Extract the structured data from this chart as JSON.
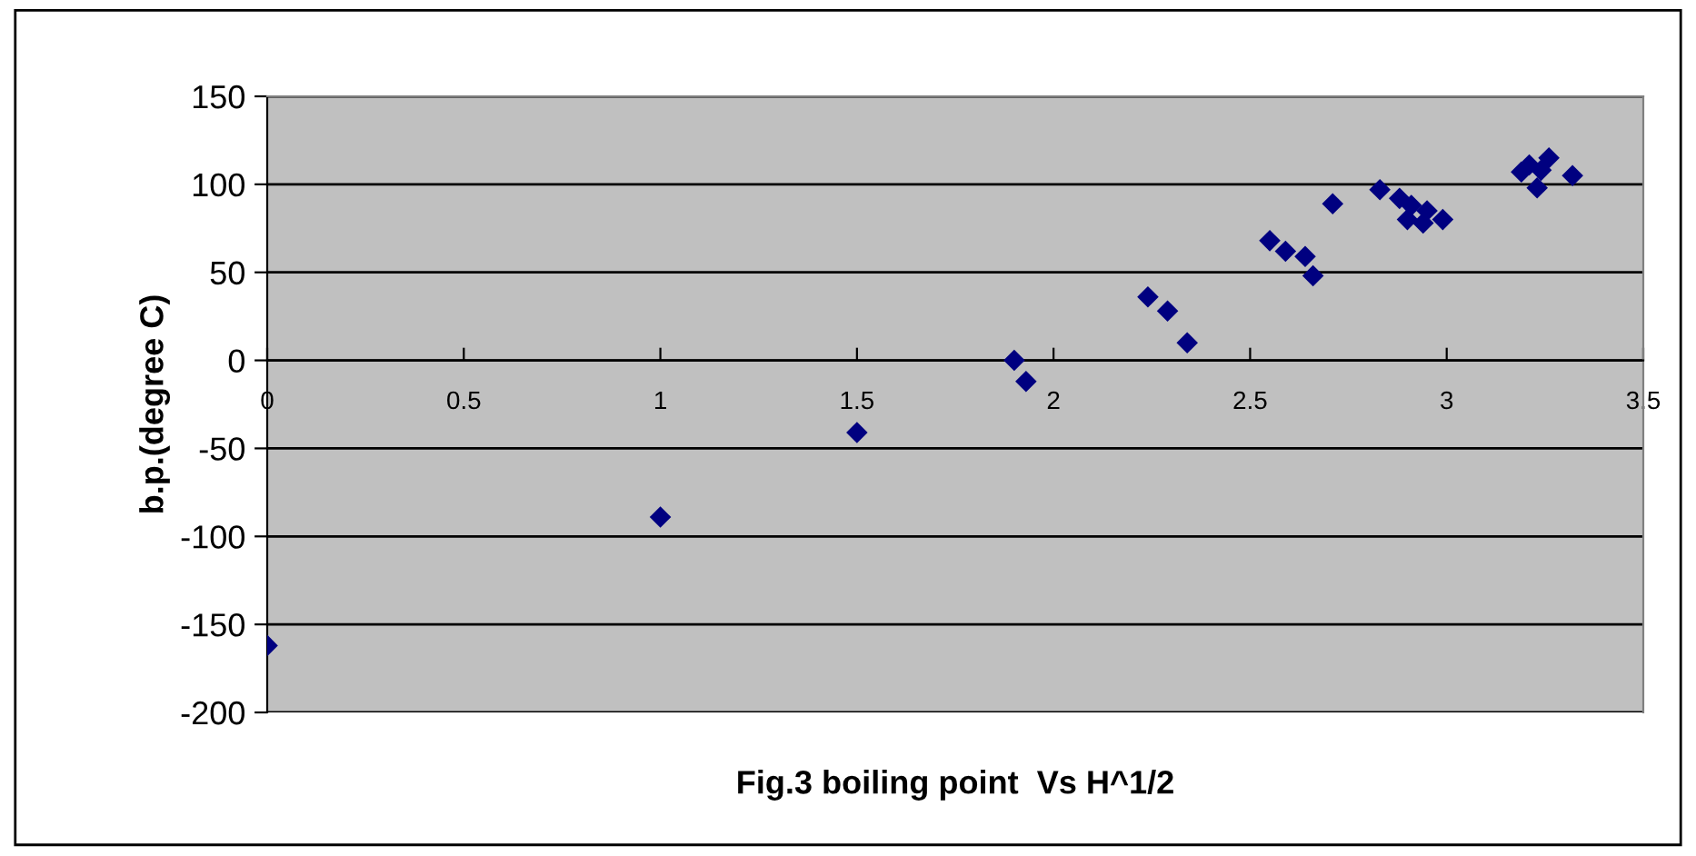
{
  "chart_data": {
    "type": "scatter",
    "xlabel": "Fig.3 boiling point  Vs H^1/2",
    "ylabel": "b.p.(degree C)",
    "x": [
      0,
      1.0,
      1.5,
      1.9,
      1.93,
      2.24,
      2.29,
      2.34,
      2.55,
      2.59,
      2.64,
      2.66,
      2.71,
      2.83,
      2.88,
      2.91,
      2.9,
      2.94,
      2.95,
      2.99,
      3.19,
      3.21,
      3.26,
      3.24,
      3.23,
      3.32
    ],
    "values": [
      -162,
      -89,
      -41,
      0,
      -12,
      36,
      28,
      10,
      68,
      62,
      59,
      48,
      89,
      97,
      92,
      88,
      80,
      78,
      85,
      80,
      107,
      111,
      115,
      108,
      98,
      105
    ],
    "color": "#000080",
    "marker": "diamond",
    "xlim": [
      0,
      3.5
    ],
    "xticks": [
      0,
      0.5,
      1,
      1.5,
      2,
      2.5,
      3,
      3.5
    ],
    "ylim": [
      -200,
      150
    ],
    "yticks": [
      -200,
      -150,
      -100,
      -50,
      0,
      50,
      100,
      150
    ],
    "grid": "y"
  }
}
